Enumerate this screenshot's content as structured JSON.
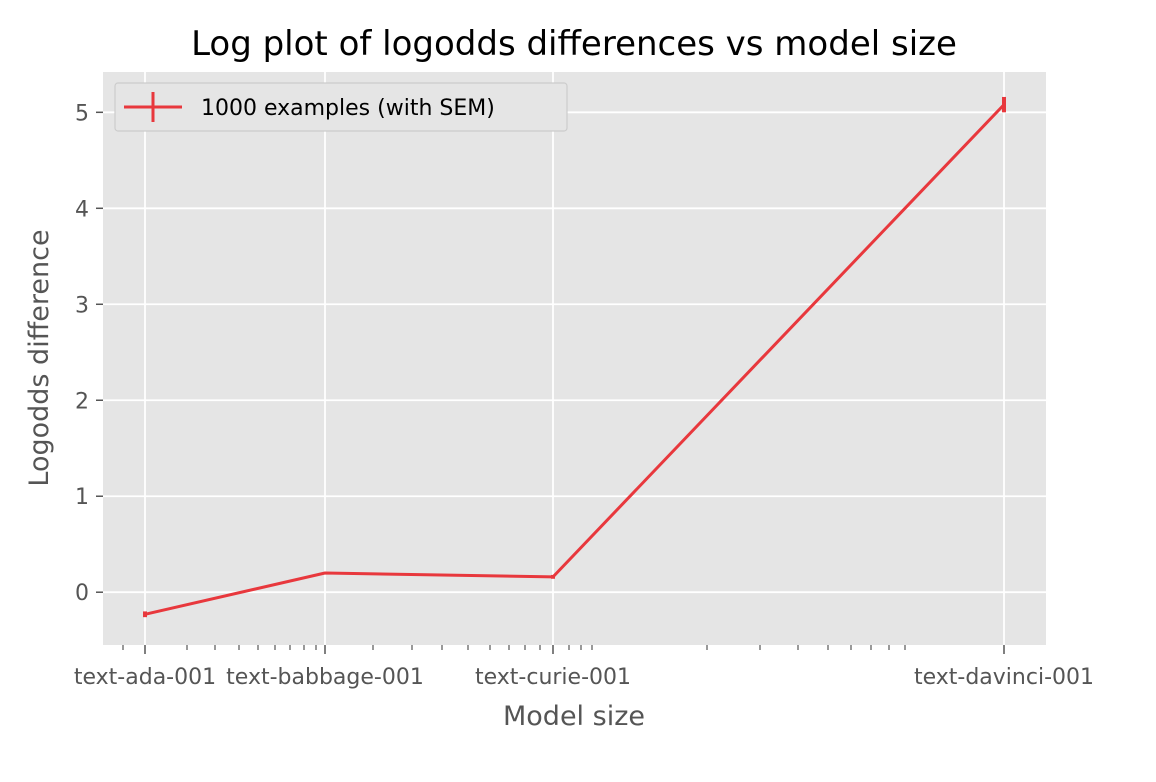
{
  "chart_data": {
    "type": "line",
    "title": "Log plot of logodds differences vs model size",
    "xlabel": "Model size",
    "ylabel": "Logodds difference",
    "x_scale": "log",
    "categories": [
      "text-ada-001",
      "text-babbage-001",
      "text-curie-001",
      "text-davinci-001"
    ],
    "y_ticks": [
      0,
      1,
      2,
      3,
      4,
      5
    ],
    "ylim": [
      -0.55,
      5.42
    ],
    "grid": true,
    "legend_position": "top-left",
    "series": [
      {
        "name": "1000 examples (with SEM)",
        "color": "#e8383d",
        "values": [
          -0.23,
          0.2,
          0.16,
          5.08
        ],
        "sem": [
          0.03,
          0.01,
          0.02,
          0.08
        ]
      }
    ]
  }
}
